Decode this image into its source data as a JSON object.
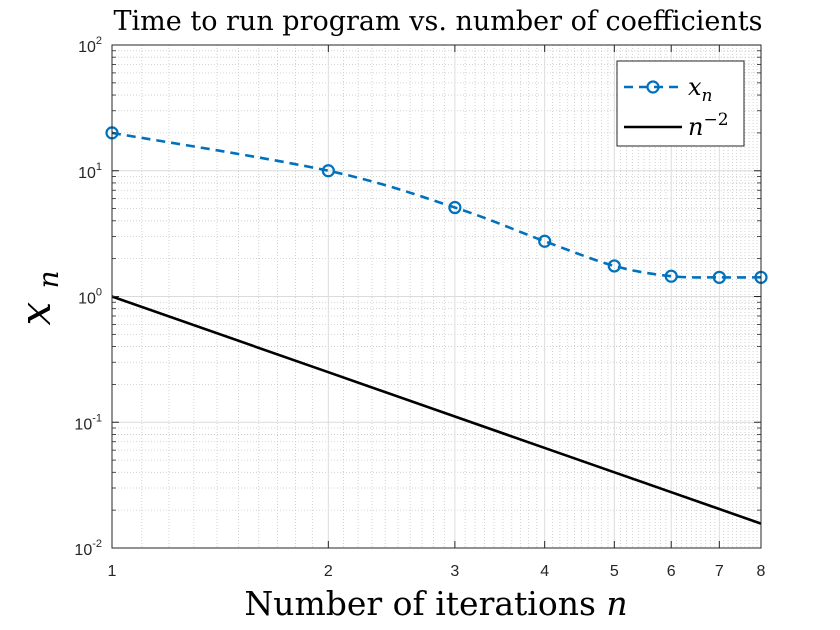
{
  "chart_data": {
    "type": "line",
    "title": "Time to run program vs. number of coefficients",
    "xlabel": "Number of iterations n",
    "ylabel": "x_n",
    "x_scale": "log",
    "y_scale": "log",
    "xlim": [
      1,
      8
    ],
    "ylim": [
      0.01,
      100
    ],
    "grid": true,
    "minor_grid": true,
    "legend_position": "top-right",
    "x_ticks": [
      {
        "value": 1,
        "label": "1"
      },
      {
        "value": 2,
        "label": "2"
      },
      {
        "value": 3,
        "label": "3"
      },
      {
        "value": 4,
        "label": "4"
      },
      {
        "value": 5,
        "label": "5"
      },
      {
        "value": 6,
        "label": "6"
      },
      {
        "value": 7,
        "label": "7"
      },
      {
        "value": 8,
        "label": "8"
      }
    ],
    "y_ticks": [
      {
        "value": 0.01,
        "base": "10",
        "exp": "-2"
      },
      {
        "value": 0.1,
        "base": "10",
        "exp": "-1"
      },
      {
        "value": 1,
        "base": "10",
        "exp": "0"
      },
      {
        "value": 10,
        "base": "10",
        "exp": "1"
      },
      {
        "value": 100,
        "base": "10",
        "exp": "2"
      }
    ],
    "series": [
      {
        "name": "x_n",
        "legend_base": "x",
        "legend_sub": "n",
        "color": "#0072bd",
        "line_style": "dashed",
        "marker": "circle",
        "x": [
          1,
          2,
          3,
          4,
          5,
          6,
          7,
          8
        ],
        "y": [
          20,
          10,
          5.1,
          2.75,
          1.75,
          1.45,
          1.42,
          1.42
        ]
      },
      {
        "name": "n^-2",
        "legend_base": "n",
        "legend_sup": "−2",
        "color": "#000000",
        "line_style": "solid",
        "marker": "none",
        "x": [
          1,
          2,
          3,
          4,
          5,
          6,
          7,
          8
        ],
        "y": [
          1,
          0.25,
          0.1111,
          0.0625,
          0.04,
          0.02778,
          0.02041,
          0.015625
        ]
      }
    ]
  }
}
